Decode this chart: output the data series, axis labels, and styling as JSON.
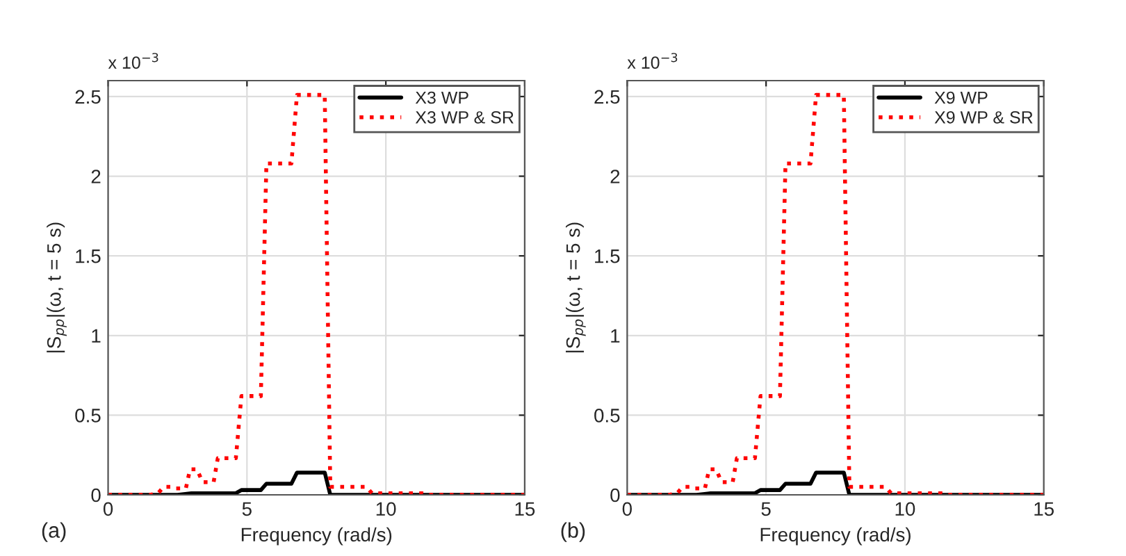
{
  "chart_data": [
    {
      "type": "line",
      "xlabel": "Frequency (rad/s)",
      "ylabel": "|S$_{pp}$|(ω, t = 5 s)",
      "annotations": [
        "x 10$^{−3}$",
        "(a)"
      ],
      "xlim": [
        0,
        15
      ],
      "xticks": [
        0,
        5,
        10,
        15
      ],
      "ylim": [
        0,
        2.6
      ],
      "yticks": [
        0,
        0.5,
        1,
        1.5,
        2,
        2.5
      ],
      "grid": true,
      "legend": "top right",
      "series": [
        {
          "name": "X3 WP",
          "color": "#000000",
          "line_style": "solid",
          "x": [
            0,
            2.5,
            3.0,
            4.0,
            4.6,
            4.8,
            5.5,
            5.7,
            6.6,
            6.8,
            7.8,
            8.0,
            15
          ],
          "values": [
            0,
            0,
            0.01,
            0.01,
            0.01,
            0.03,
            0.03,
            0.07,
            0.07,
            0.14,
            0.14,
            0,
            0
          ]
        },
        {
          "name": "X3 WP & SR",
          "color": "#ff0000",
          "line_style": "dotted",
          "x": [
            0,
            1.5,
            1.8,
            2.0,
            2.3,
            2.4,
            2.8,
            2.95,
            3.2,
            3.4,
            3.8,
            3.95,
            4.6,
            4.8,
            5.5,
            5.7,
            6.6,
            6.8,
            7.8,
            8.0,
            9.3,
            9.5,
            11.3,
            11.5,
            15
          ],
          "values": [
            0,
            0,
            0.01,
            0.05,
            0.05,
            0.04,
            0.04,
            0.16,
            0.16,
            0.08,
            0.08,
            0.23,
            0.23,
            0.62,
            0.62,
            2.08,
            2.08,
            2.51,
            2.51,
            0.05,
            0.05,
            0.01,
            0.01,
            0,
            0
          ]
        }
      ]
    },
    {
      "type": "line",
      "xlabel": "Frequency (rad/s)",
      "ylabel": "|S$_{pp}$|(ω, t = 5 s)",
      "annotations": [
        "x 10$^{−3}$",
        "(b)"
      ],
      "xlim": [
        0,
        15
      ],
      "xticks": [
        0,
        5,
        10,
        15
      ],
      "ylim": [
        0,
        2.6
      ],
      "yticks": [
        0,
        0.5,
        1,
        1.5,
        2,
        2.5
      ],
      "grid": true,
      "legend": "top right",
      "series": [
        {
          "name": "X9 WP",
          "color": "#000000",
          "line_style": "solid",
          "x": [
            0,
            2.5,
            3.0,
            4.0,
            4.6,
            4.8,
            5.5,
            5.7,
            6.6,
            6.8,
            7.8,
            8.0,
            15
          ],
          "values": [
            0,
            0,
            0.01,
            0.01,
            0.01,
            0.03,
            0.03,
            0.07,
            0.07,
            0.14,
            0.14,
            0,
            0
          ]
        },
        {
          "name": "X9 WP & SR",
          "color": "#ff0000",
          "line_style": "dotted",
          "x": [
            0,
            1.5,
            1.8,
            2.0,
            2.3,
            2.4,
            2.8,
            2.95,
            3.2,
            3.4,
            3.8,
            3.95,
            4.6,
            4.8,
            5.5,
            5.7,
            6.6,
            6.8,
            7.8,
            8.0,
            9.3,
            9.5,
            11.3,
            11.5,
            15
          ],
          "values": [
            0,
            0,
            0.01,
            0.05,
            0.05,
            0.04,
            0.04,
            0.16,
            0.16,
            0.08,
            0.08,
            0.23,
            0.23,
            0.62,
            0.62,
            2.08,
            2.08,
            2.51,
            2.51,
            0.05,
            0.05,
            0.01,
            0.01,
            0,
            0
          ]
        }
      ]
    }
  ]
}
